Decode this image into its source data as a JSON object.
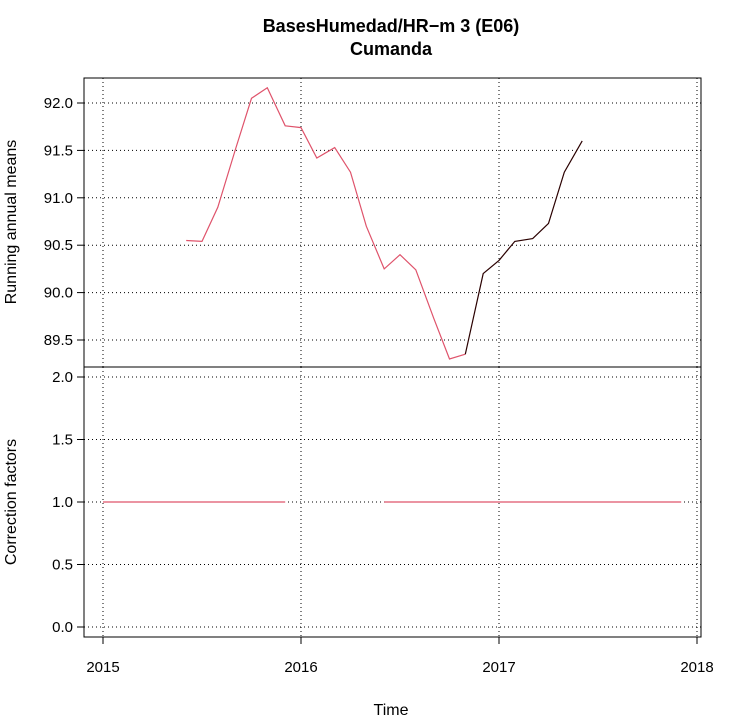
{
  "chart_data": [
    {
      "type": "line",
      "title": "BasesHumedad/HR−m   3 (E06)",
      "subtitle": "Cumanda",
      "ylabel": "Running annual means",
      "xlim": [
        2015,
        2018
      ],
      "ylim": [
        89.3,
        92.25
      ],
      "y_ticks": [
        "89.5",
        "90.0",
        "90.5",
        "91.0",
        "91.5",
        "92.0"
      ],
      "grid": true,
      "series": [
        {
          "color": "#df536b",
          "x": [
            2015.42,
            2015.5,
            2015.58,
            2015.67,
            2015.75,
            2015.83,
            2015.92,
            2016.0,
            2016.08,
            2016.17,
            2016.25,
            2016.33,
            2016.42,
            2016.5,
            2016.58,
            2016.67,
            2016.75,
            2016.83
          ],
          "y": [
            90.55,
            90.54,
            90.9,
            91.52,
            92.05,
            92.16,
            91.76,
            91.74,
            91.42,
            91.53,
            91.27,
            90.7,
            90.25,
            90.4,
            90.24,
            89.73,
            89.3,
            89.35
          ]
        },
        {
          "color": "#2a0000",
          "x": [
            2016.83,
            2016.92,
            2017.0,
            2017.08,
            2017.17,
            2017.25,
            2017.33,
            2017.42
          ],
          "y": [
            89.35,
            90.2,
            90.34,
            90.54,
            90.57,
            90.73,
            91.27,
            91.6
          ]
        }
      ]
    },
    {
      "type": "line",
      "ylabel": "Correction factors",
      "xlabel": "Time",
      "xlim": [
        2015,
        2018
      ],
      "ylim": [
        -0.05,
        2.05
      ],
      "x_ticks": [
        "2015",
        "2016",
        "2017",
        "2018"
      ],
      "y_ticks": [
        "0.0",
        "0.5",
        "1.0",
        "1.5",
        "2.0"
      ],
      "grid": true,
      "series": [
        {
          "color": "#df536b",
          "x": [
            2015.0,
            2015.92
          ],
          "y": [
            1.0,
            1.0
          ]
        },
        {
          "color": "#df536b",
          "x": [
            2016.42,
            2017.92
          ],
          "y": [
            1.0,
            1.0
          ]
        }
      ]
    }
  ]
}
